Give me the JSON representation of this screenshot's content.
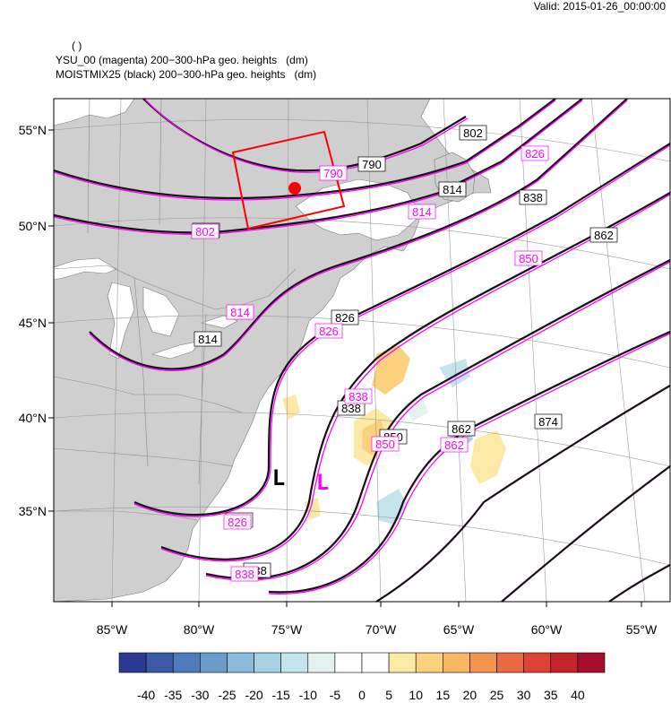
{
  "header": {
    "valid": "Valid: 2015-01-26_00:00:00",
    "line0": "( )",
    "line1": "YSU_00 (magenta) 200−300-hPa geo. heights   (dm)",
    "line2": "MOISTMIX25 (black) 200−300-hPa geo. heights   (dm)"
  },
  "axes": {
    "lat_labels": [
      "55°N",
      "50°N",
      "45°N",
      "40°N",
      "35°N"
    ],
    "lon_labels": [
      "85°W",
      "80°W",
      "75°W",
      "70°W",
      "65°W",
      "60°W",
      "55°W"
    ]
  },
  "contour_labels_black": [
    "790",
    "802",
    "802",
    "814",
    "814",
    "826",
    "826",
    "838",
    "838",
    "838",
    "850",
    "862",
    "862",
    "874"
  ],
  "contour_labels_magenta": [
    "790",
    "802",
    "814",
    "814",
    "826",
    "826",
    "826",
    "838",
    "838",
    "850",
    "850",
    "862"
  ],
  "lows": {
    "black": "L",
    "magenta": "L"
  },
  "colorbar": {
    "labels": [
      "-40",
      "-35",
      "-30",
      "-25",
      "-20",
      "-15",
      "-10",
      "-5",
      "0",
      "5",
      "10",
      "15",
      "20",
      "25",
      "30",
      "35",
      "40"
    ],
    "colors": [
      "#2b3a93",
      "#3c5aa8",
      "#4f7bbd",
      "#6a9ccb",
      "#8bbbd8",
      "#a8d2e4",
      "#c4e4ec",
      "#e2f2ef",
      "#ffffff",
      "#ffffff",
      "#fde9a6",
      "#fbd17e",
      "#f8b563",
      "#f4934f",
      "#ea6a43",
      "#dc4535",
      "#c4242c",
      "#a50f2a"
    ]
  },
  "colors": {
    "land": "#cfcfcf",
    "ocean": "#ffffff",
    "black_contour": "#1a0a1a",
    "magenta_contour": "#ff00ff",
    "box": "#ff0000"
  }
}
